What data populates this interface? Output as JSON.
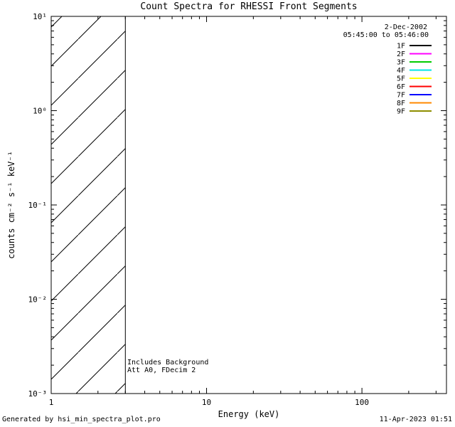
{
  "chart_data": {
    "type": "line",
    "title": "Count Spectra for RHESSI Front Segments",
    "xlabel": "Energy (keV)",
    "ylabel": "counts cm⁻² s⁻¹ keV⁻¹",
    "x_scale": "log",
    "y_scale": "log",
    "xlim": [
      1,
      350
    ],
    "ylim": [
      0.001,
      10
    ],
    "x_ticks": [
      1,
      10,
      100
    ],
    "x_tick_labels": [
      "1",
      "10",
      "100"
    ],
    "y_ticks": [
      0.001,
      0.01,
      0.1,
      1,
      10
    ],
    "y_tick_labels": [
      "10⁻³",
      "10⁻²",
      "10⁻¹",
      "10⁰",
      "10¹"
    ],
    "grid": false,
    "legend_position": "top-right-inside",
    "observation_date": "2-Dec-2002",
    "observation_time": "05:45:00 to 05:46:00",
    "series": [
      {
        "name": "1F",
        "color": "#000000",
        "values": []
      },
      {
        "name": "2F",
        "color": "#ff00ff",
        "values": []
      },
      {
        "name": "3F",
        "color": "#00cc00",
        "values": []
      },
      {
        "name": "4F",
        "color": "#00e5e5",
        "values": []
      },
      {
        "name": "5F",
        "color": "#ffff00",
        "values": []
      },
      {
        "name": "6F",
        "color": "#ff0000",
        "values": []
      },
      {
        "name": "7F",
        "color": "#0000ff",
        "values": []
      },
      {
        "name": "8F",
        "color": "#ff8800",
        "values": []
      },
      {
        "name": "9F",
        "color": "#8e8e00",
        "values": []
      }
    ],
    "hatched_region": {
      "x_start": 1,
      "x_end": 3
    },
    "annotations": [
      "Includes Background",
      "Att A0, FDecim 2"
    ]
  },
  "footer": {
    "left": "Generated by hsi_min_spectra_plot.pro",
    "right": "11-Apr-2023 01:51"
  }
}
